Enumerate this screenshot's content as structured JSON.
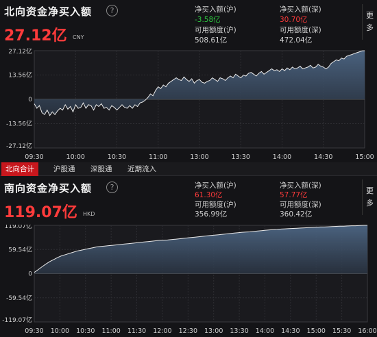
{
  "north": {
    "title": "北向资金净买入额",
    "value": "27.12亿",
    "unit": "CNY",
    "net_buy_hu_label": "净买入额(沪)",
    "net_buy_hu_value": "-3.58亿",
    "net_buy_shen_label": "净买入额(深)",
    "net_buy_shen_value": "30.70亿",
    "avail_hu_label": "可用额度(沪)",
    "avail_hu_value": "508.61亿",
    "avail_shen_label": "可用额度(深)",
    "avail_shen_value": "472.04亿",
    "more_label": "更多"
  },
  "tabs": [
    {
      "label": "北向合计",
      "active": true
    },
    {
      "label": "沪股通",
      "active": false
    },
    {
      "label": "深股通",
      "active": false
    },
    {
      "label": "近期流入",
      "active": false
    }
  ],
  "south": {
    "title": "南向资金净买入额",
    "value": "119.07亿",
    "unit": "HKD",
    "net_buy_hu_label": "净买入额(沪)",
    "net_buy_hu_value": "61.30亿",
    "net_buy_shen_label": "净买入额(深)",
    "net_buy_shen_value": "57.77亿",
    "avail_hu_label": "可用额度(沪)",
    "avail_hu_value": "356.99亿",
    "avail_shen_label": "可用额度(深)",
    "avail_shen_value": "360.42亿",
    "more_label": "更多"
  },
  "colors": {
    "accent_red": "#ff3b3b",
    "accent_green": "#2ecc40",
    "line": "#e8e8e8",
    "area": "#3b4e66"
  },
  "chart_data": [
    {
      "type": "area",
      "yticks": [
        "27.12亿",
        "13.56亿",
        "0",
        "-13.56亿",
        "-27.12亿"
      ],
      "ylim": [
        -27.12,
        27.12
      ],
      "xticks": [
        "09:30",
        "10:00",
        "10:30",
        "11:00",
        "13:00",
        "13:30",
        "14:00",
        "14:30",
        "15:00"
      ],
      "grid": true,
      "series": [
        {
          "values": [
            -2.5,
            -5,
            -3.5,
            -7.5,
            -8.5,
            -6,
            -9,
            -7,
            -8.5,
            -6.5,
            -5,
            -6,
            -3,
            -5.5,
            -4,
            -7,
            -3,
            -5,
            -4.5,
            -2,
            -5,
            -3,
            -3.5,
            -6,
            -3,
            -4,
            -2.5,
            -5,
            -4.5,
            -6,
            -3.5,
            -4.5,
            -6,
            -4.5,
            -3,
            -4.5,
            -5,
            -3.5,
            -5,
            -3,
            -4,
            -2,
            -1.5,
            -0.5,
            1,
            3,
            2,
            5,
            7,
            6,
            8,
            7,
            9,
            10,
            11,
            12,
            11,
            10.5,
            12.5,
            11,
            10,
            11.5,
            9,
            10.5,
            11,
            9.5,
            9,
            10,
            10.5,
            12,
            11,
            10,
            12,
            11.5,
            10.5,
            12,
            13,
            12,
            14,
            13,
            12,
            13.5,
            13,
            14.5,
            15,
            14,
            13,
            14.5,
            15.5,
            14,
            15,
            16,
            17,
            16,
            16.5,
            15.5,
            17,
            16,
            17.5,
            16.5,
            18,
            17,
            17.5,
            18.5,
            17,
            17.5,
            18,
            19,
            17.5,
            18,
            19.5,
            18.5,
            18,
            17,
            18,
            20,
            21,
            22,
            21.5,
            23,
            22.5,
            24,
            24.5,
            25,
            25.5,
            26,
            26.5,
            27,
            27.12
          ]
        }
      ]
    },
    {
      "type": "area",
      "yticks": [
        "119.07亿",
        "59.54亿",
        "0",
        "-59.54亿",
        "-119.07亿"
      ],
      "ylim": [
        -119.07,
        119.07
      ],
      "xticks": [
        "09:30",
        "10:00",
        "10:30",
        "11:00",
        "11:30",
        "12:00",
        "12:30",
        "13:00",
        "13:30",
        "14:00",
        "14:30",
        "15:00",
        "15:30",
        "16:00"
      ],
      "grid": true,
      "series": [
        {
          "values": [
            3,
            10,
            17,
            24,
            30,
            35,
            40,
            44,
            47,
            50,
            53,
            56,
            58,
            60,
            62,
            64,
            66,
            67,
            68,
            69,
            70,
            71,
            72,
            73,
            74,
            75,
            76,
            77,
            78,
            79,
            80,
            81,
            82,
            82.5,
            83,
            84,
            85,
            86,
            87,
            88,
            89,
            90,
            91,
            92,
            93,
            94,
            95,
            96,
            97,
            98,
            99,
            100,
            101,
            102,
            102.5,
            103,
            104,
            105,
            106,
            107,
            108,
            108.5,
            109,
            110,
            110.5,
            111,
            111.5,
            112,
            112.5,
            113,
            113.5,
            114,
            114.5,
            115,
            115,
            115.5,
            116,
            116.5,
            117,
            117,
            117.5,
            118,
            118,
            118.5,
            119,
            119.07
          ]
        }
      ]
    }
  ]
}
